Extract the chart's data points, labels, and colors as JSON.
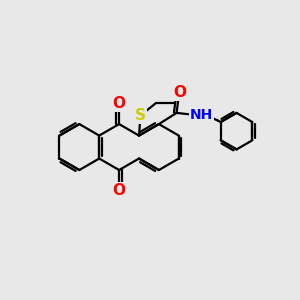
{
  "background_color": "#e8e8e8",
  "bond_color": "#000000",
  "bond_width": 1.6,
  "atom_colors": {
    "O": "#ff0000",
    "S": "#cccc00",
    "N": "#0000ff"
  },
  "font_size": 10,
  "fig_width": 3.0,
  "fig_height": 3.0,
  "dpi": 100
}
